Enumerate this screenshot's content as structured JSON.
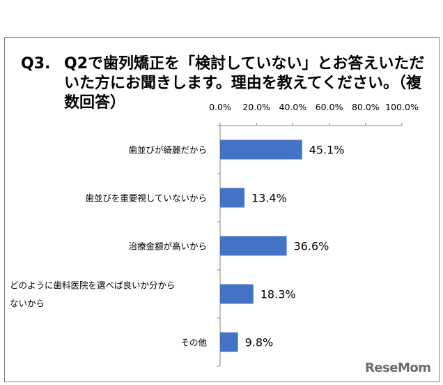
{
  "question": {
    "number": "Q3.",
    "text": "Q2で歯列矯正を「検討していない」とお答えいただいた方にお聞きします。理由を教えてください。（複数回答）"
  },
  "logo": {
    "text": "ReseMom"
  },
  "chart_data": {
    "type": "bar",
    "orientation": "horizontal",
    "categories": [
      [
        "歯並びが綺麗だから"
      ],
      [
        "歯並びを重要視していないから"
      ],
      [
        "治療金額が高いから"
      ],
      [
        "どのように歯科医院を選べば良いか分から",
        "ないから"
      ],
      [
        "その他"
      ]
    ],
    "values": [
      45.1,
      13.4,
      36.6,
      18.3,
      9.8
    ],
    "data_labels": [
      "45.1%",
      "13.4%",
      "36.6%",
      "18.3%",
      "9.8%"
    ],
    "x_ticks": [
      "0.0%",
      "20.0%",
      "40.0%",
      "60.0%",
      "80.0%",
      "100.0%"
    ],
    "xlim": [
      0,
      100
    ],
    "grid": false,
    "colors": {
      "bar": "#4472c4",
      "axis": "#808080"
    }
  }
}
